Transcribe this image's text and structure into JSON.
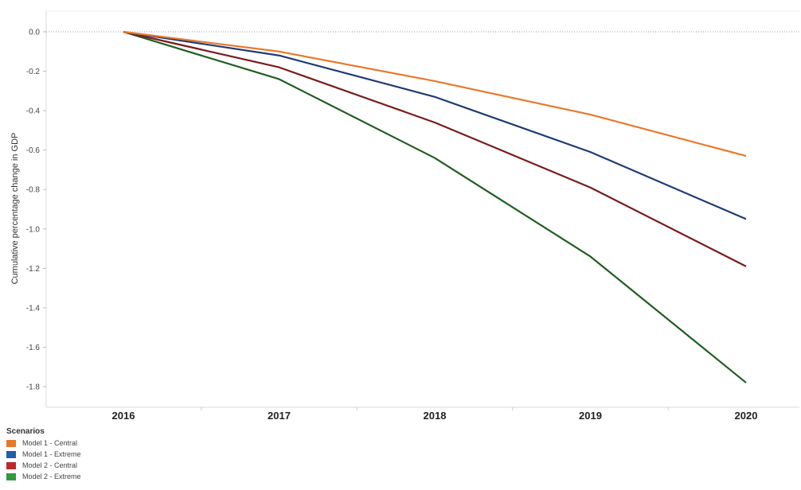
{
  "chart_data": {
    "type": "line",
    "title": "",
    "xlabel": "",
    "ylabel": "Cumulative percentage change in GDP",
    "x": [
      "2016",
      "2017",
      "2018",
      "2019",
      "2020"
    ],
    "ylim": [
      -1.8,
      0.0
    ],
    "yticks": [
      "0.0",
      "-0.2",
      "-0.4",
      "-0.6",
      "-0.8",
      "-1.0",
      "-1.2",
      "-1.4",
      "-1.6",
      "-1.8"
    ],
    "ytick_values": [
      0.0,
      -0.2,
      -0.4,
      -0.6,
      -0.8,
      -1.0,
      -1.2,
      -1.4,
      -1.6,
      -1.8
    ],
    "grid": false,
    "zero_line": "dotted",
    "legend_position": "bottom-left",
    "legend_title": "Scenarios",
    "series": [
      {
        "name": "Model 1 - Central",
        "color": "#e8792b",
        "values": [
          0.0,
          -0.1,
          -0.25,
          -0.42,
          -0.63
        ]
      },
      {
        "name": "Model 1 - Extreme",
        "color": "#1f3b73",
        "values": [
          0.0,
          -0.12,
          -0.33,
          -0.61,
          -0.95
        ]
      },
      {
        "name": "Model 2 - Central",
        "color": "#7a1c1c",
        "values": [
          0.0,
          -0.18,
          -0.46,
          -0.79,
          -1.19
        ]
      },
      {
        "name": "Model 2 - Extreme",
        "color": "#1f5e1f",
        "values": [
          0.0,
          -0.24,
          -0.64,
          -1.14,
          -1.78
        ]
      }
    ]
  },
  "legend": {
    "title": "Scenarios",
    "items": [
      {
        "label": "Model 1 - Central",
        "color": "#e8792b"
      },
      {
        "label": "Model 1 - Extreme",
        "color": "#1f5fa8"
      },
      {
        "label": "Model 2 - Central",
        "color": "#c0262c"
      },
      {
        "label": "Model 2 - Extreme",
        "color": "#2e9a3c"
      }
    ]
  }
}
